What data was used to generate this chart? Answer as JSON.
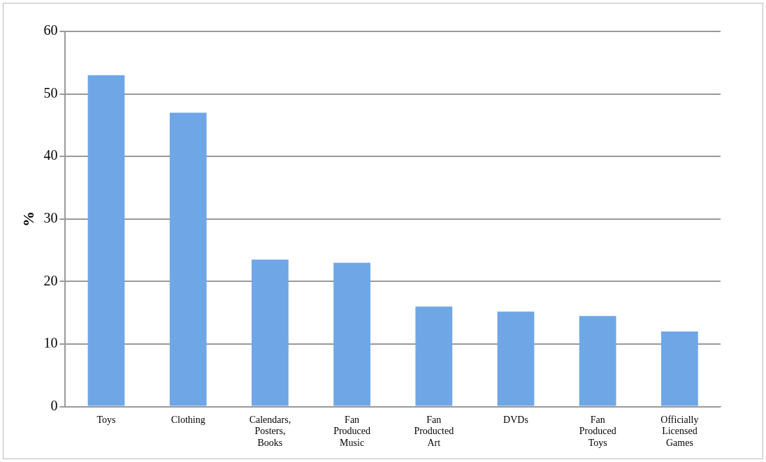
{
  "chart_data": {
    "type": "bar",
    "ylabel": "%",
    "categories": [
      "Toys",
      "Clothing",
      "Calendars, Posters, Books",
      "Fan Produced Music",
      "Fan Producted Art",
      "DVDs",
      "Fan Produced Toys",
      "Officially Licensed Games"
    ],
    "values": [
      53,
      47,
      23.5,
      23,
      16,
      15.2,
      14.5,
      12
    ],
    "color": "#6fa6e6",
    "ylim": [
      0,
      60
    ],
    "yticks": [
      0,
      10,
      20,
      30,
      40,
      50,
      60
    ],
    "grid": "y"
  }
}
